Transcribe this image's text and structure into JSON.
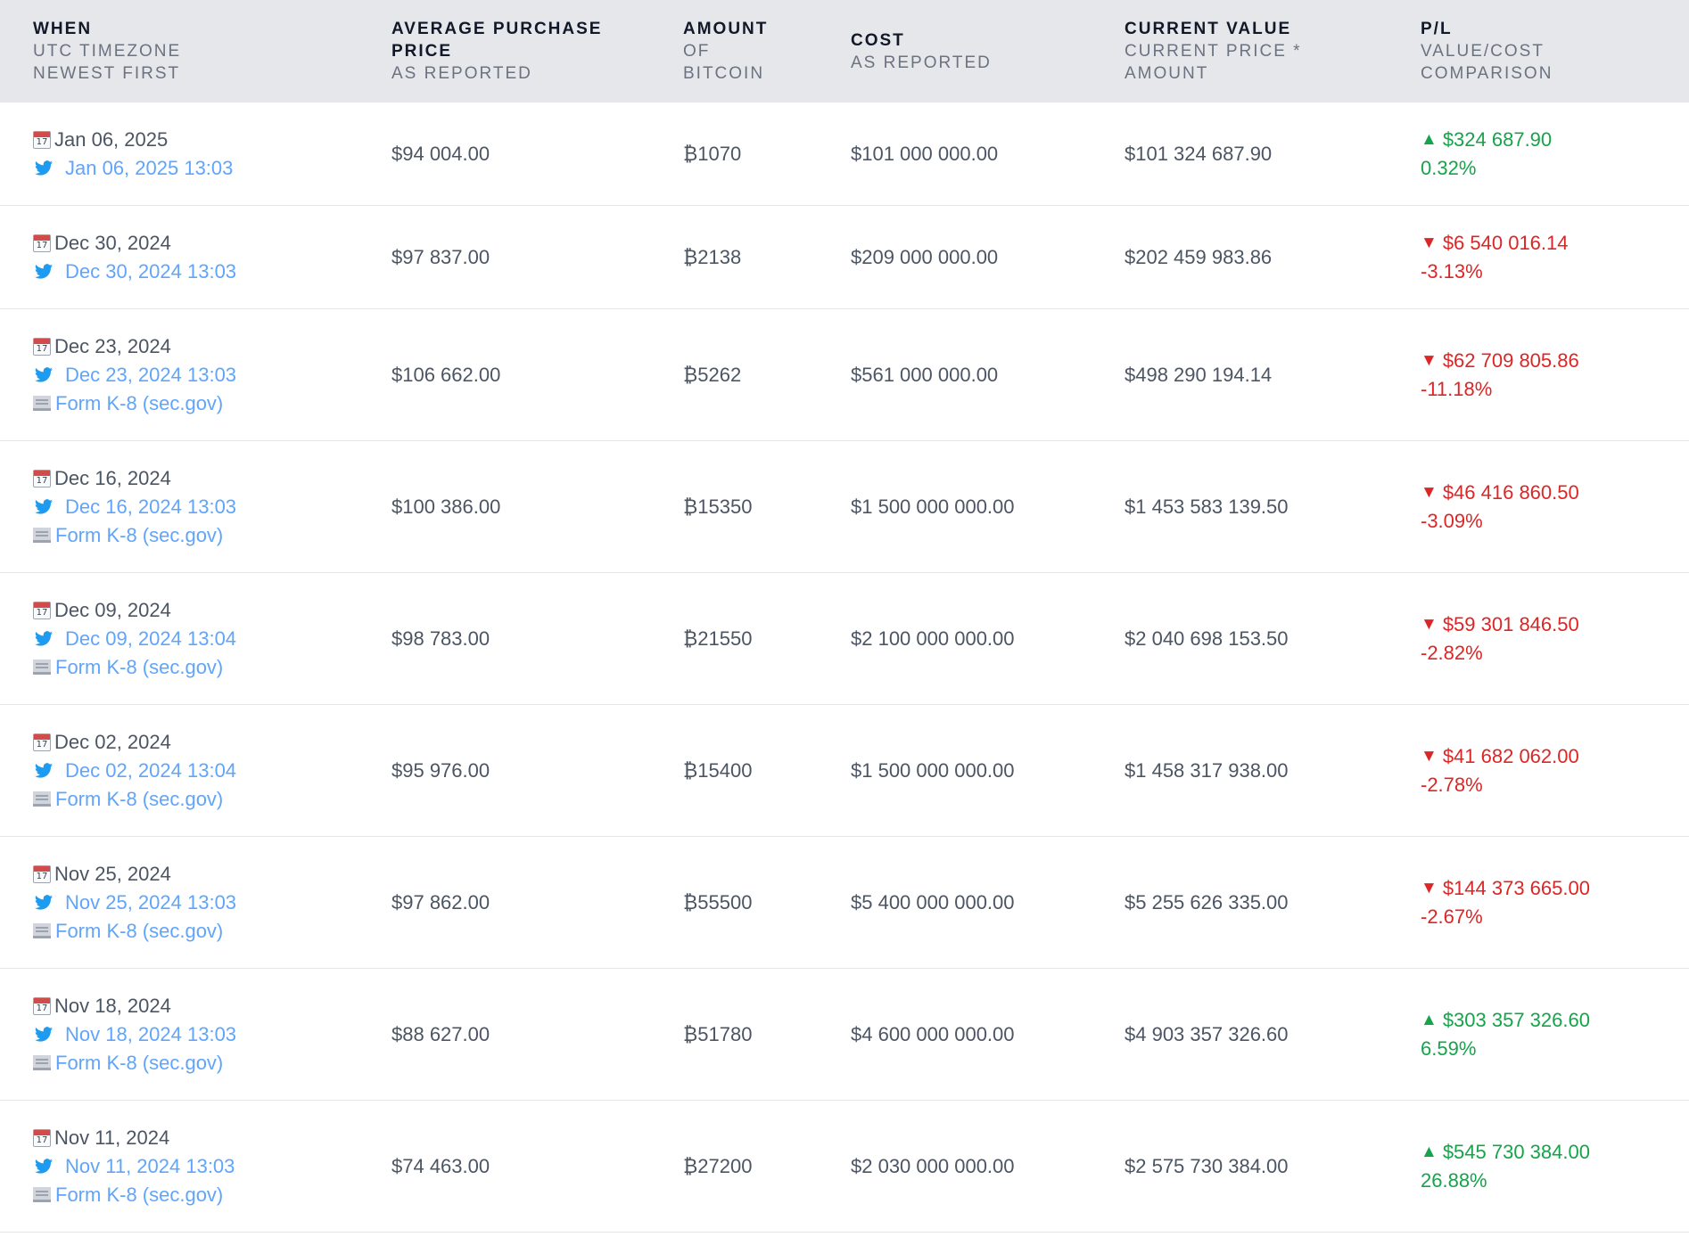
{
  "headers": [
    {
      "main": "WHEN",
      "sub": [
        "UTC TIMEZONE",
        "NEWEST FIRST"
      ]
    },
    {
      "main": "AVERAGE PURCHASE",
      "main2": "PRICE",
      "sub": [
        "AS REPORTED"
      ]
    },
    {
      "main": "AMOUNT",
      "sub": [
        "OF",
        "BITCOIN"
      ]
    },
    {
      "main": "COST",
      "sub": [
        "AS REPORTED"
      ]
    },
    {
      "main": "CURRENT VALUE",
      "sub": [
        "CURRENT PRICE *",
        "AMOUNT"
      ]
    },
    {
      "main": "P/L",
      "sub": [
        "VALUE/COST",
        "COMPARISON"
      ]
    }
  ],
  "rows": [
    {
      "date": "Jan 06, 2025",
      "tweet": "Jan 06, 2025 13:03",
      "form": "",
      "price": "$94 004.00",
      "amount": "₿1070",
      "cost": "$101 000 000.00",
      "value": "$101 324 687.90",
      "pl": "$324 687.90",
      "pct": "0.32%",
      "dir": "up"
    },
    {
      "date": "Dec 30, 2024",
      "tweet": "Dec 30, 2024 13:03",
      "form": "",
      "price": "$97 837.00",
      "amount": "₿2138",
      "cost": "$209 000 000.00",
      "value": "$202 459 983.86",
      "pl": "$6 540 016.14",
      "pct": "-3.13%",
      "dir": "down"
    },
    {
      "date": "Dec 23, 2024",
      "tweet": "Dec 23, 2024 13:03",
      "form": "Form K-8 (sec.gov)",
      "price": "$106 662.00",
      "amount": "₿5262",
      "cost": "$561 000 000.00",
      "value": "$498 290 194.14",
      "pl": "$62 709 805.86",
      "pct": "-11.18%",
      "dir": "down"
    },
    {
      "date": "Dec 16, 2024",
      "tweet": "Dec 16, 2024 13:03",
      "form": "Form K-8 (sec.gov)",
      "price": "$100 386.00",
      "amount": "₿15350",
      "cost": "$1 500 000 000.00",
      "value": "$1 453 583 139.50",
      "pl": "$46 416 860.50",
      "pct": "-3.09%",
      "dir": "down"
    },
    {
      "date": "Dec 09, 2024",
      "tweet": "Dec 09, 2024 13:04",
      "form": "Form K-8 (sec.gov)",
      "price": "$98 783.00",
      "amount": "₿21550",
      "cost": "$2 100 000 000.00",
      "value": "$2 040 698 153.50",
      "pl": "$59 301 846.50",
      "pct": "-2.82%",
      "dir": "down"
    },
    {
      "date": "Dec 02, 2024",
      "tweet": "Dec 02, 2024 13:04",
      "form": "Form K-8 (sec.gov)",
      "price": "$95 976.00",
      "amount": "₿15400",
      "cost": "$1 500 000 000.00",
      "value": "$1 458 317 938.00",
      "pl": "$41 682 062.00",
      "pct": "-2.78%",
      "dir": "down"
    },
    {
      "date": "Nov 25, 2024",
      "tweet": "Nov 25, 2024 13:03",
      "form": "Form K-8 (sec.gov)",
      "price": "$97 862.00",
      "amount": "₿55500",
      "cost": "$5 400 000 000.00",
      "value": "$5 255 626 335.00",
      "pl": "$144 373 665.00",
      "pct": "-2.67%",
      "dir": "down"
    },
    {
      "date": "Nov 18, 2024",
      "tweet": "Nov 18, 2024 13:03",
      "form": "Form K-8 (sec.gov)",
      "price": "$88 627.00",
      "amount": "₿51780",
      "cost": "$4 600 000 000.00",
      "value": "$4 903 357 326.60",
      "pl": "$303 357 326.60",
      "pct": "6.59%",
      "dir": "up"
    },
    {
      "date": "Nov 11, 2024",
      "tweet": "Nov 11, 2024 13:03",
      "form": "Form K-8 (sec.gov)",
      "price": "$74 463.00",
      "amount": "₿27200",
      "cost": "$2 030 000 000.00",
      "value": "$2 575 730 384.00",
      "pl": "$545 730 384.00",
      "pct": "26.88%",
      "dir": "up"
    }
  ],
  "icons": {
    "date": "calendar-icon",
    "tweet": "twitter-bird-icon",
    "form": "document-icon",
    "up": "triangle-up-icon",
    "down": "triangle-down-icon"
  },
  "colors": {
    "up": "#16a34a",
    "down": "#dc2626",
    "link": "#60a5fa",
    "header_bg": "#e5e7eb"
  }
}
